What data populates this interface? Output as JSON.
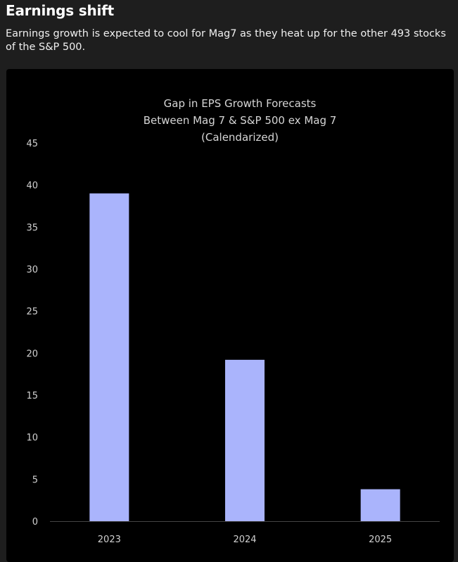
{
  "header": {
    "title": "Earnings shift",
    "subtitle": "Earnings growth is expected to cool for Mag7 as they heat up for the other 493 stocks of the S&P 500."
  },
  "colors": {
    "background": "#1e1e1e",
    "chart_background": "#000000",
    "bar": "#aab4fc",
    "axis": "#444444"
  },
  "chart_data": {
    "type": "bar",
    "title_lines": [
      "Gap in EPS Growth Forecasts",
      "Between  Mag 7 & S&P 500 ex Mag 7",
      "(Calendarized)"
    ],
    "categories": [
      "2023",
      "2024",
      "2025"
    ],
    "values": [
      39,
      19.2,
      3.8
    ],
    "xlabel": "",
    "ylabel": "",
    "ylim": [
      0,
      45
    ],
    "yticks": [
      0,
      5,
      10,
      15,
      20,
      25,
      30,
      35,
      40,
      45
    ],
    "grid": false,
    "legend": "none"
  }
}
